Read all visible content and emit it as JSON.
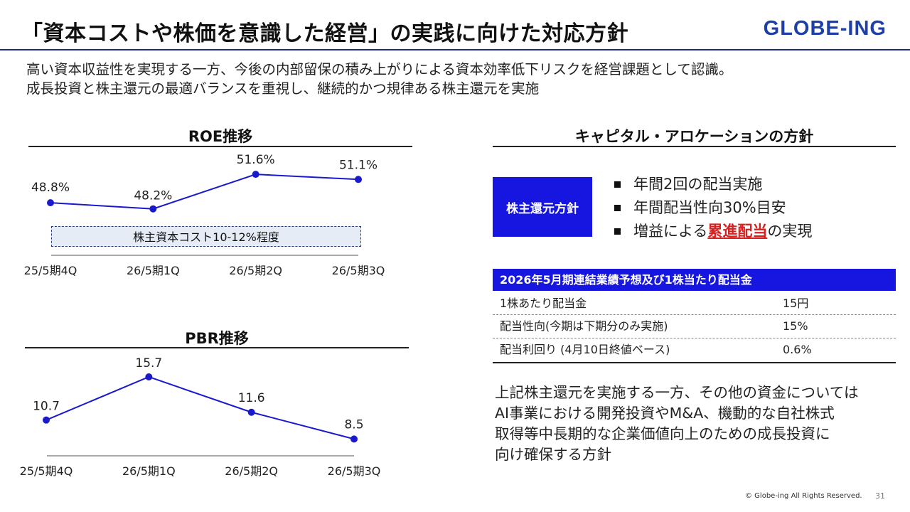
{
  "header": {
    "title": "「資本コストや株価を意識した経営」の実践に向けた対応方針",
    "logo": "GLOBE-ING"
  },
  "intro": {
    "line1": "高い資本収益性を実現する一方、今後の内部留保の積み上がりによる資本効率低下リスクを経営課題として認識。",
    "line2": "成長投資と株主還元の最適バランスを重視し、継続的かつ規律ある株主還元を実施"
  },
  "chart_data": [
    {
      "type": "line",
      "title": "ROE推移",
      "categories": [
        "25/5期4Q",
        "26/5期1Q",
        "26/5期2Q",
        "26/5期3Q"
      ],
      "values": [
        48.8,
        48.2,
        51.6,
        51.1
      ],
      "labels": [
        "48.8%",
        "48.2%",
        "51.6%",
        "51.1%"
      ],
      "unit": "%",
      "ylim": [
        46.5,
        53.5
      ],
      "grid": false,
      "color": "#1a1acc",
      "annotation": "株主資本コスト10-12%程度"
    },
    {
      "type": "line",
      "title": "PBR推移",
      "categories": [
        "25/5期4Q",
        "26/5期1Q",
        "26/5期2Q",
        "26/5期3Q"
      ],
      "values": [
        10.7,
        15.7,
        11.6,
        8.5
      ],
      "labels": [
        "10.7",
        "15.7",
        "11.6",
        "8.5"
      ],
      "ylim": [
        4,
        18.5
      ],
      "grid": false,
      "color": "#1a1acc"
    }
  ],
  "capital": {
    "title": "キャピタル・アロケーションの方針",
    "policy_label": "株主還元方針",
    "bullets": [
      "年間2回の配当実施",
      "年間配当性向30%目安"
    ],
    "bullet3_pre": "増益による",
    "bullet3_highlight": "累進配当",
    "bullet3_post": "の実現",
    "highlight_color": "#d92020"
  },
  "dividend_table": {
    "header": "2026年5月期連結業績予想及び1株当たり配当金",
    "rows": [
      {
        "label": "1株あたり配当金",
        "value": "15円"
      },
      {
        "label": "配当性向(今期は下期分のみ実施)",
        "value": "15%"
      },
      {
        "label": "配当利回り (4月10日終値ベース)",
        "value": "0.6%"
      }
    ]
  },
  "closing": {
    "line1": "上記株主還元を実施する一方、その他の資金については",
    "line2": "AI事業における開発投資やM&A、機動的な自社株式",
    "line3": "取得等中長期的な企業価値向上のための成長投資に",
    "line4": "向け確保する方針"
  },
  "footer": {
    "copyright": "© Globe-ing All Rights Reserved.",
    "page": "31"
  },
  "colors": {
    "accent_blue": "#1616e0",
    "navy_rule": "#1e2a8c",
    "logo_blue": "#1e3ea8"
  }
}
